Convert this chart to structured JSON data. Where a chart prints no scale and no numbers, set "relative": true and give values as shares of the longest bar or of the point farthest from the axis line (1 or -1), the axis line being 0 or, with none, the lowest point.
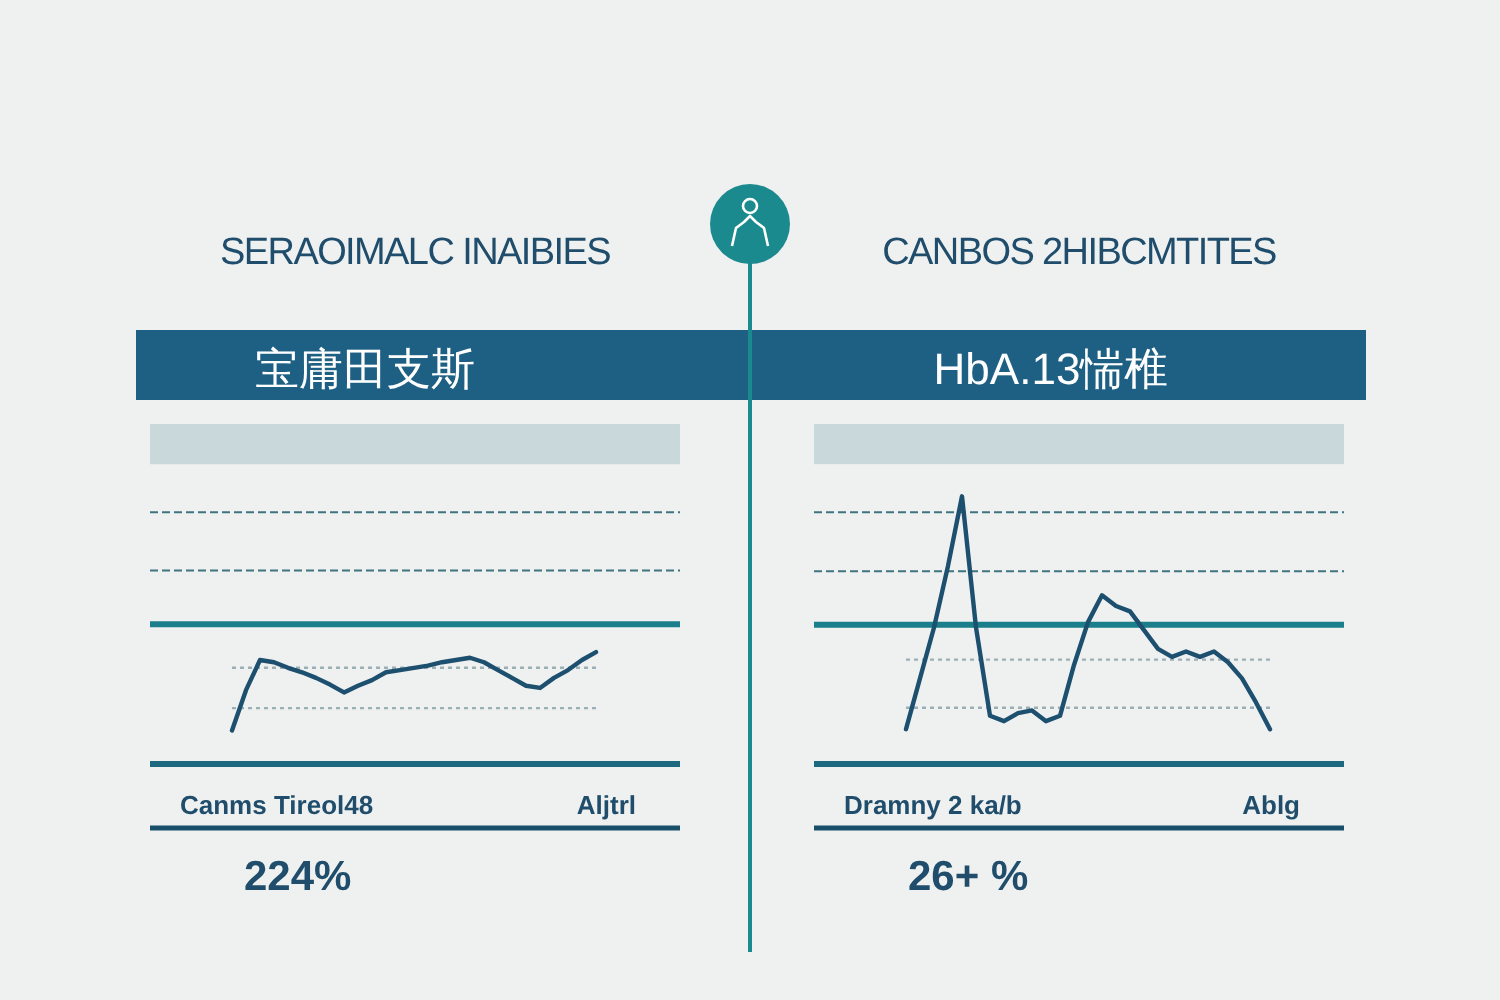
{
  "chart_data": [
    {
      "type": "line",
      "title": "SERAOIMALC INAIBIES",
      "subtitle": "宝庸田支斯",
      "relative": true,
      "categories": [
        null,
        null,
        null,
        null,
        null,
        null,
        null,
        null,
        null,
        null,
        null,
        null,
        null,
        null,
        null,
        null,
        null,
        null,
        null,
        null,
        null,
        null,
        null,
        null,
        null,
        null,
        null
      ],
      "series": [
        {
          "color": "#1d4f6f",
          "values": [
            0.3,
            0.66,
            0.93,
            0.91,
            0.86,
            0.82,
            0.77,
            0.71,
            0.64,
            0.7,
            0.75,
            0.82,
            0.84,
            0.86,
            0.88,
            0.91,
            0.93,
            0.95,
            0.91,
            0.84,
            0.77,
            0.7,
            0.68,
            0.77,
            0.84,
            0.93,
            1
          ]
        }
      ],
      "ref_lines": [
        {
          "axis": "y",
          "value": 2.25,
          "color": "#3f7480",
          "line_style": "dashed"
        },
        {
          "axis": "y",
          "value": 1.73,
          "color": "#3f7480",
          "line_style": "dashed"
        },
        {
          "axis": "y",
          "value": 1.25,
          "color": "#1a7f8a",
          "line_style": "solid"
        },
        {
          "axis": "y",
          "value": 0.86,
          "color": "#9ab0b5",
          "line_style": "dotted"
        },
        {
          "axis": "y",
          "value": 0.5,
          "color": "#9ab0b5",
          "line_style": "dotted"
        }
      ],
      "bands": [
        {
          "axis": "y",
          "from": 2.68,
          "to": 3.04,
          "color": "#c9d9db"
        }
      ],
      "annotations": [
        "Canms Tireol48",
        "Aljtrl",
        "224%"
      ]
    },
    {
      "type": "line",
      "title": "CANBOS 2HIBCMTITES",
      "subtitle": "HbA.13惴椎",
      "relative": true,
      "categories": [
        null,
        null,
        null,
        null,
        null,
        null,
        null,
        null,
        null,
        null,
        null,
        null,
        null,
        null,
        null,
        null,
        null,
        null,
        null,
        null,
        null,
        null,
        null,
        null,
        null,
        null,
        null
      ],
      "series": [
        {
          "color": "#1d4f6f",
          "values": [
            0.13,
            0.32,
            0.51,
            0.74,
            1,
            0.51,
            0.18,
            0.16,
            0.19,
            0.2,
            0.16,
            0.18,
            0.37,
            0.53,
            0.63,
            0.59,
            0.57,
            0.5,
            0.43,
            0.4,
            0.42,
            0.4,
            0.42,
            0.38,
            0.32,
            0.23,
            0.13
          ]
        }
      ],
      "ref_lines": [
        {
          "axis": "y",
          "value": 0.94,
          "color": "#3f7480",
          "line_style": "dashed"
        },
        {
          "axis": "y",
          "value": 0.72,
          "color": "#3f7480",
          "line_style": "dashed"
        },
        {
          "axis": "y",
          "value": 0.52,
          "color": "#1a7f8a",
          "line_style": "solid"
        },
        {
          "axis": "y",
          "value": 0.39,
          "color": "#9ab0b5",
          "line_style": "dotted"
        },
        {
          "axis": "y",
          "value": 0.21,
          "color": "#9ab0b5",
          "line_style": "dotted"
        }
      ],
      "bands": [
        {
          "axis": "y",
          "from": 1.12,
          "to": 1.27,
          "color": "#c9d9db"
        }
      ],
      "annotations": [
        "Dramny 2 ka/b",
        "Ablg",
        "26+ %"
      ]
    }
  ]
}
